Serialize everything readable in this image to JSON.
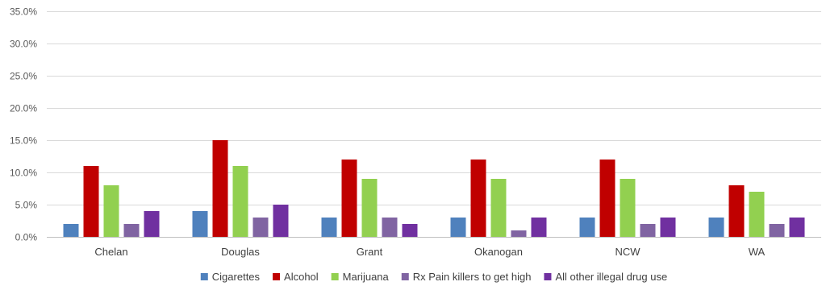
{
  "chart_data": {
    "type": "bar",
    "categories": [
      "Chelan",
      "Douglas",
      "Grant",
      "Okanogan",
      "NCW",
      "WA"
    ],
    "series": [
      {
        "name": "Cigarettes",
        "color": "#4f81bd",
        "values": [
          2,
          4,
          3,
          3,
          3,
          3
        ]
      },
      {
        "name": "Alcohol",
        "color": "#c00000",
        "values": [
          11,
          15,
          12,
          12,
          12,
          8
        ]
      },
      {
        "name": "Marijuana",
        "color": "#92d050",
        "values": [
          8,
          11,
          9,
          9,
          9,
          7
        ]
      },
      {
        "name": "Rx Pain killers to get high",
        "color": "#8064a2",
        "values": [
          2,
          3,
          3,
          1,
          2,
          2
        ]
      },
      {
        "name": "All other illegal drug use",
        "color": "#7030a0",
        "values": [
          4,
          5,
          2,
          3,
          3,
          3
        ]
      }
    ],
    "yticks": [
      "0.0%",
      "5.0%",
      "10.0%",
      "15.0%",
      "20.0%",
      "25.0%",
      "30.0%",
      "35.0%"
    ],
    "ylim": [
      0,
      35
    ],
    "grid": true,
    "legend": "bottom"
  }
}
